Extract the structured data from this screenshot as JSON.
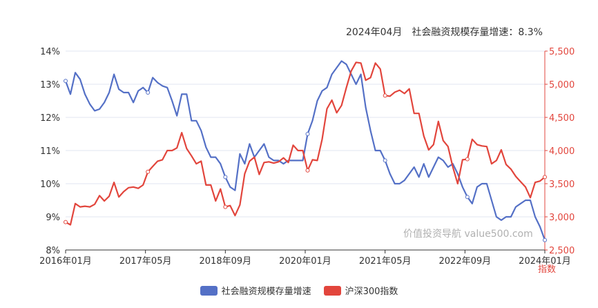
{
  "headline": {
    "date": "2024年04月",
    "label": "社会融资规模存量增速：",
    "value": "8.3%"
  },
  "watermark": "价值投资导航 value500.com",
  "chart_data": {
    "type": "line",
    "x_ticks": [
      "2016年01月",
      "2017年05月",
      "2018年09月",
      "2020年01月",
      "2021年05月",
      "2022年09月",
      "2024年01月"
    ],
    "y_left": {
      "ticks": [
        "8%",
        "9%",
        "10%",
        "11%",
        "12%",
        "13%",
        "14%"
      ],
      "min": 8,
      "max": 14
    },
    "y_right": {
      "ticks": [
        "2,500",
        "3,000",
        "3,500",
        "4,000",
        "4,500",
        "5,000",
        "5,500"
      ],
      "min": 2500,
      "max": 5500,
      "label": "指数"
    },
    "series": [
      {
        "name": "社会融资规模存量增速",
        "axis": "left",
        "color": "#5470c6",
        "values": [
          13.1,
          12.7,
          13.35,
          13.15,
          12.7,
          12.4,
          12.2,
          12.25,
          12.45,
          12.75,
          13.3,
          12.85,
          12.75,
          12.75,
          12.45,
          12.8,
          12.9,
          12.75,
          13.2,
          13.05,
          12.95,
          12.9,
          12.5,
          12.05,
          12.7,
          12.7,
          11.9,
          11.9,
          11.6,
          11.1,
          10.8,
          10.8,
          10.6,
          10.2,
          9.9,
          9.8,
          10.9,
          10.6,
          11.2,
          10.8,
          11.0,
          11.2,
          10.8,
          10.7,
          10.7,
          10.6,
          10.7,
          10.7,
          10.7,
          10.7,
          11.5,
          11.9,
          12.5,
          12.8,
          12.9,
          13.3,
          13.5,
          13.7,
          13.6,
          13.3,
          13.0,
          13.3,
          12.3,
          11.6,
          11.0,
          11.0,
          10.7,
          10.3,
          10.0,
          10.0,
          10.1,
          10.3,
          10.5,
          10.2,
          10.6,
          10.2,
          10.5,
          10.8,
          10.7,
          10.5,
          10.6,
          10.3,
          9.9,
          9.6,
          9.4,
          9.9,
          10.0,
          10.0,
          9.5,
          9.0,
          8.9,
          9.0,
          9.0,
          9.3,
          9.4,
          9.5,
          9.5,
          9.0,
          8.7,
          8.3
        ]
      },
      {
        "name": "沪深300指数",
        "axis": "right",
        "color": "#e2453c",
        "values": [
          2920,
          2880,
          3200,
          3150,
          3160,
          3150,
          3190,
          3320,
          3240,
          3310,
          3520,
          3300,
          3380,
          3440,
          3450,
          3430,
          3480,
          3680,
          3760,
          3840,
          3860,
          4000,
          4000,
          4040,
          4270,
          4030,
          3920,
          3800,
          3840,
          3480,
          3480,
          3240,
          3420,
          3150,
          3170,
          3020,
          3180,
          3650,
          3840,
          3900,
          3640,
          3820,
          3830,
          3810,
          3830,
          3890,
          3820,
          4080,
          4000,
          4000,
          3700,
          3860,
          3850,
          4170,
          4630,
          4760,
          4570,
          4680,
          4950,
          5200,
          5330,
          5320,
          5060,
          5100,
          5320,
          5230,
          4830,
          4820,
          4880,
          4910,
          4860,
          4930,
          4560,
          4560,
          4220,
          4010,
          4090,
          4440,
          4150,
          4060,
          3750,
          3500,
          3860,
          3870,
          4170,
          4090,
          4070,
          4060,
          3800,
          3850,
          4010,
          3790,
          3720,
          3610,
          3530,
          3450,
          3290,
          3520,
          3540,
          3600
        ]
      }
    ]
  }
}
